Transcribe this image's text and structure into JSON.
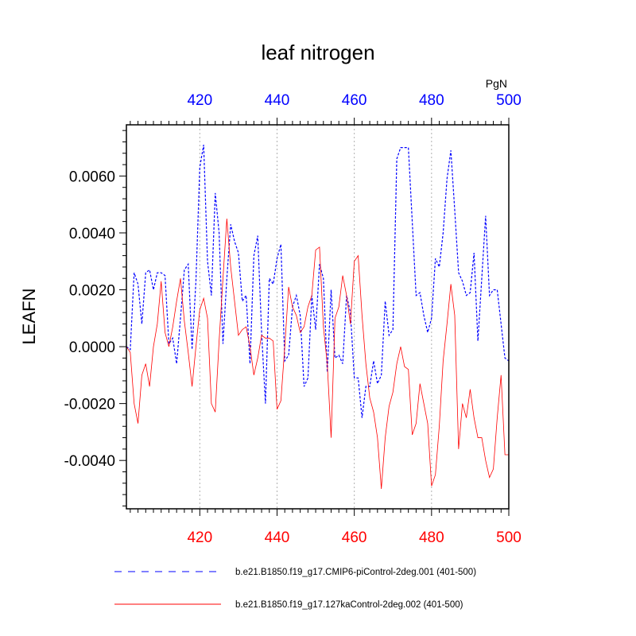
{
  "chart_data": {
    "type": "line",
    "title": "leaf nitrogen",
    "ylabel": "LEAFN",
    "units_label": "PgN",
    "xlim": [
      401,
      500
    ],
    "ylim": [
      -0.0057,
      0.0078
    ],
    "yticks": [
      -0.004,
      -0.002,
      0.0,
      0.002,
      0.004,
      0.006
    ],
    "ytick_labels": [
      "-0.0040",
      "-0.0020",
      "0.0000",
      "0.0020",
      "0.0040",
      "0.0060"
    ],
    "xticks": [
      420,
      440,
      460,
      480,
      500
    ],
    "xtick_labels_top": [
      "420",
      "440",
      "460",
      "480",
      "500"
    ],
    "xtick_labels_bottom": [
      "420",
      "440",
      "460",
      "480",
      "500"
    ],
    "top_axis_color": "#0000ff",
    "bottom_axis_color": "#ff0000",
    "grid": "vertical dotted at x ticks",
    "legend_position": "bottom",
    "series": [
      {
        "name": "b.e21.B1850.f19_g17.CMIP6-piControl-2deg.001 (401-500)",
        "color": "#0000ff",
        "style": "dashed",
        "x_start": 401,
        "values": [
          0.0,
          -0.0001,
          0.0026,
          0.0022,
          0.0008,
          0.0026,
          0.0027,
          0.002,
          0.0026,
          0.0026,
          0.0025,
          0.0001,
          0.0003,
          -0.0006,
          0.001,
          0.0027,
          0.0029,
          -0.0001,
          0.0023,
          0.0063,
          0.0071,
          0.003,
          0.0018,
          0.0054,
          0.004,
          0.0001,
          0.0024,
          0.0043,
          0.0037,
          0.0033,
          0.0016,
          0.0018,
          -0.0006,
          0.0032,
          0.0039,
          0.0005,
          -0.002,
          0.0024,
          0.0022,
          0.0031,
          0.0036,
          -0.0005,
          -0.0003,
          0.0014,
          0.0018,
          0.0011,
          -0.0014,
          -0.0011,
          0.0018,
          0.0006,
          0.0029,
          0.0024,
          -0.0009,
          0.002,
          -0.0004,
          -0.0003,
          -0.0006,
          0.0018,
          0.0012,
          -0.0011,
          -0.0011,
          -0.0025,
          -0.0014,
          -0.0014,
          -0.0005,
          -0.0013,
          -0.001,
          0.0016,
          0.0004,
          0.0006,
          0.0066,
          0.007,
          0.007,
          0.007,
          0.0044,
          0.0018,
          0.0019,
          0.0011,
          0.0005,
          0.001,
          0.0031,
          0.0028,
          0.004,
          0.0059,
          0.0069,
          0.0048,
          0.0026,
          0.0023,
          0.0018,
          0.0019,
          0.0033,
          0.0002,
          0.0024,
          0.0046,
          0.0018,
          0.002,
          0.002,
          0.0008,
          -0.0004,
          -0.0005
        ]
      },
      {
        "name": "b.e21.B1850.f19_g17.127kaControl-2deg.002 (401-500)",
        "color": "#ff0000",
        "style": "solid",
        "x_start": 401,
        "values": [
          0.0,
          -0.0002,
          -0.002,
          -0.0027,
          -0.001,
          -0.0006,
          -0.0014,
          0.0,
          0.0008,
          0.0023,
          0.0005,
          0.0,
          0.0007,
          0.0016,
          0.0024,
          0.0009,
          -0.0002,
          -0.0014,
          0.0,
          0.0013,
          0.0017,
          0.001,
          -0.002,
          -0.0023,
          0.0002,
          0.0024,
          0.0045,
          0.0028,
          0.0016,
          0.0004,
          0.0006,
          0.0007,
          0.0,
          -0.001,
          -0.0004,
          0.0004,
          0.0003,
          0.0003,
          0.0002,
          -0.0022,
          -0.0019,
          0.0,
          0.0021,
          0.0014,
          0.0011,
          0.0005,
          0.0007,
          0.0014,
          0.0018,
          0.0034,
          0.0035,
          0.0007,
          -0.0006,
          -0.0032,
          0.001,
          0.0014,
          0.0025,
          0.0018,
          0.0008,
          0.003,
          0.0032,
          0.0011,
          -0.0006,
          -0.0018,
          -0.0023,
          -0.0032,
          -0.005,
          -0.0032,
          -0.0021,
          -0.0016,
          -0.0006,
          0.0,
          -0.0007,
          -0.0008,
          -0.0031,
          -0.0027,
          -0.0013,
          -0.002,
          -0.0027,
          -0.0049,
          -0.0045,
          -0.0028,
          -0.0005,
          0.0008,
          0.0022,
          0.0011,
          -0.0036,
          -0.002,
          -0.0025,
          -0.0015,
          -0.0025,
          -0.0032,
          -0.0032,
          -0.004,
          -0.0046,
          -0.0043,
          -0.0025,
          -0.001,
          -0.0038,
          -0.0038
        ]
      }
    ]
  }
}
